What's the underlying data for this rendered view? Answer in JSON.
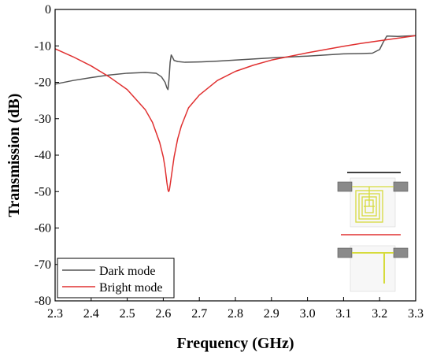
{
  "chart_data": {
    "type": "line",
    "title": "",
    "xlabel": "Frequency (GHz)",
    "ylabel": "Transmission (dB)",
    "xlim": [
      2.3,
      3.3
    ],
    "ylim": [
      -80,
      0
    ],
    "x_ticks": [
      "2.3",
      "2.4",
      "2.5",
      "2.6",
      "2.7",
      "2.8",
      "2.9",
      "3.0",
      "3.1",
      "3.2",
      "3.3"
    ],
    "y_ticks": [
      "0",
      "-10",
      "-20",
      "-30",
      "-40",
      "-50",
      "-60",
      "-70",
      "-80"
    ],
    "grid": false,
    "legend_position": "bottom-left",
    "series": [
      {
        "name": "Dark mode",
        "color": "#555555",
        "x": [
          2.3,
          2.35,
          2.4,
          2.45,
          2.5,
          2.55,
          2.58,
          2.595,
          2.605,
          2.61,
          2.613,
          2.616,
          2.619,
          2.622,
          2.625,
          2.63,
          2.64,
          2.66,
          2.7,
          2.75,
          2.8,
          2.9,
          3.0,
          3.1,
          3.15,
          3.18,
          3.2,
          3.21,
          3.22,
          3.25,
          3.3
        ],
        "y": [
          -20.5,
          -19.5,
          -18.7,
          -18.0,
          -17.5,
          -17.3,
          -17.5,
          -18.5,
          -20.0,
          -21.5,
          -22.0,
          -19.0,
          -14.5,
          -12.5,
          -13.0,
          -14.0,
          -14.3,
          -14.5,
          -14.4,
          -14.2,
          -13.9,
          -13.3,
          -12.8,
          -12.2,
          -12.1,
          -12.0,
          -11.0,
          -9.0,
          -7.3,
          -7.4,
          -7.2
        ]
      },
      {
        "name": "Bright mode",
        "color": "#e03030",
        "x": [
          2.3,
          2.35,
          2.4,
          2.45,
          2.5,
          2.55,
          2.57,
          2.59,
          2.6,
          2.605,
          2.61,
          2.613,
          2.615,
          2.617,
          2.62,
          2.625,
          2.63,
          2.64,
          2.65,
          2.67,
          2.7,
          2.75,
          2.8,
          2.85,
          2.9,
          2.95,
          3.0,
          3.05,
          3.1,
          3.15,
          3.2,
          3.25,
          3.3
        ],
        "y": [
          -10.8,
          -13.0,
          -15.5,
          -18.5,
          -22.0,
          -27.5,
          -31.0,
          -36.5,
          -40.5,
          -43.5,
          -47.5,
          -49.5,
          -50.0,
          -49.5,
          -47.5,
          -44.0,
          -40.5,
          -35.5,
          -32.0,
          -27.0,
          -23.5,
          -19.5,
          -17.0,
          -15.3,
          -13.9,
          -12.9,
          -11.9,
          -11.0,
          -10.1,
          -9.3,
          -8.6,
          -7.9,
          -7.2
        ]
      }
    ]
  },
  "inset": {
    "label": "Inset: resonator geometries",
    "line_colors": [
      "#000000",
      "#e03030"
    ],
    "trace_color": "#d6db3c"
  }
}
